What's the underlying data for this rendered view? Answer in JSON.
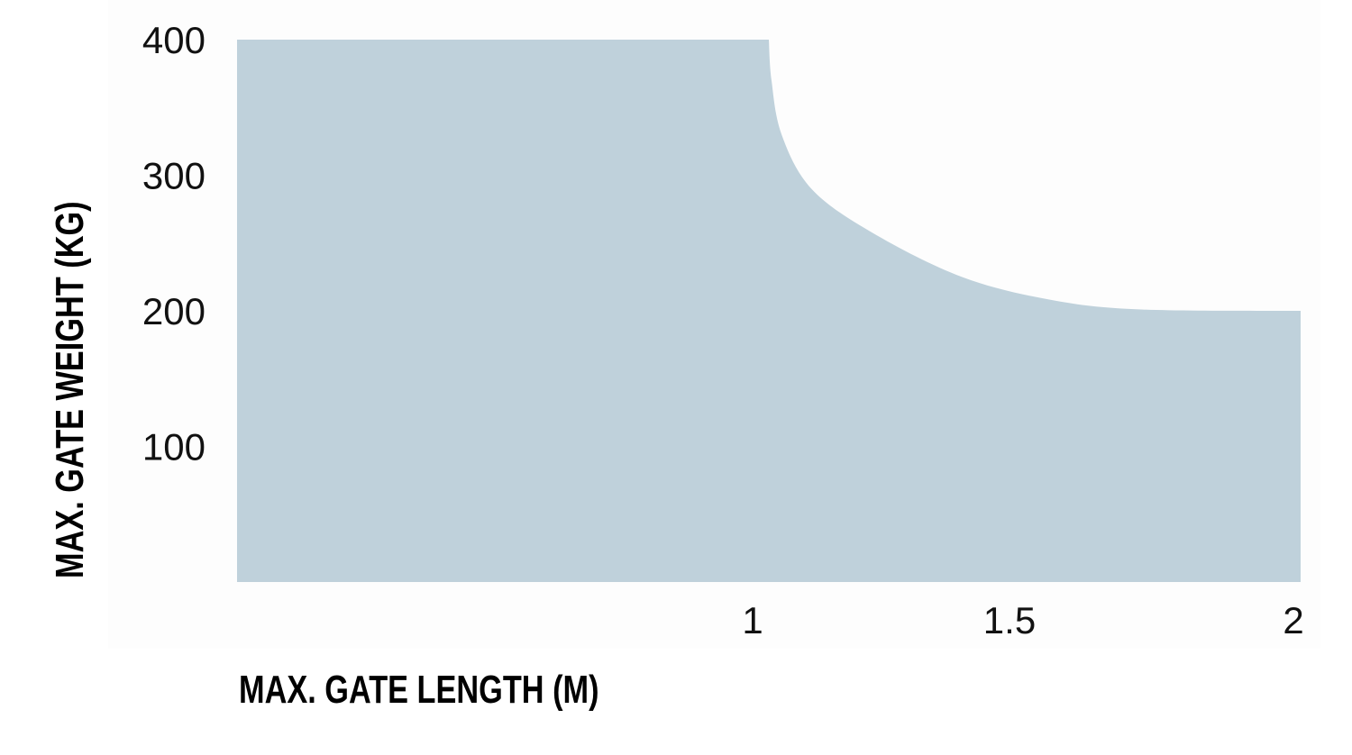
{
  "chart_data": {
    "type": "area",
    "title": "",
    "xlabel": "MAX. GATE LENGTH (M)",
    "ylabel": "MAX. GATE WEIGHT (KG)",
    "xlim": [
      0,
      2
    ],
    "ylim": [
      0,
      400
    ],
    "x_ticks": [
      "1",
      "1.5",
      "2"
    ],
    "y_ticks": [
      "100",
      "200",
      "300",
      "400"
    ],
    "grid": false,
    "legend": "none",
    "fill_color": "#bfd1db",
    "series": [
      {
        "x": [
          0,
          1,
          1.005,
          1.024,
          1.08,
          1.193,
          1.363,
          1.532,
          1.7,
          2
        ],
        "y": [
          400,
          400,
          370,
          330,
          290,
          258,
          225,
          208,
          201,
          200
        ]
      }
    ]
  }
}
